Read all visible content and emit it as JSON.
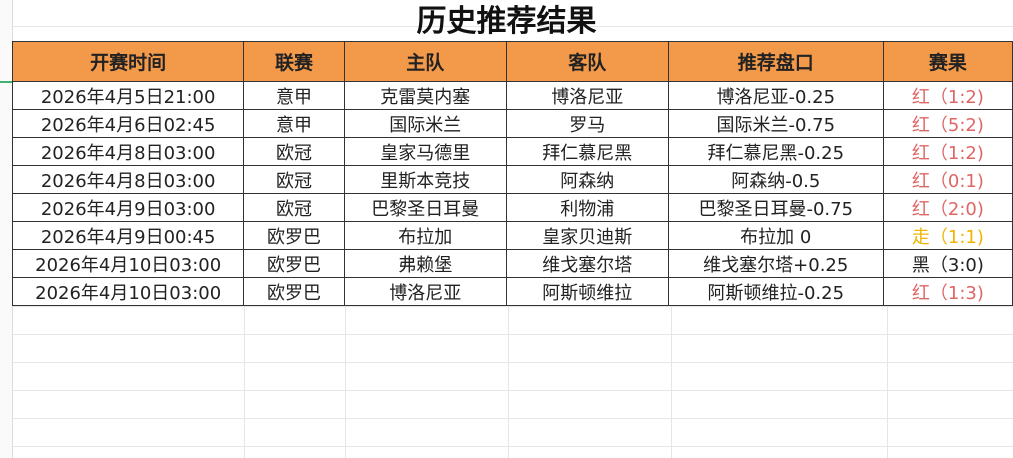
{
  "title": "历史推荐结果",
  "headers": [
    "开赛时间",
    "联赛",
    "主队",
    "客队",
    "推荐盘口",
    "赛果"
  ],
  "colors": {
    "header_bg": "#f39a4a",
    "win": "#e06666",
    "push": "#f0b400",
    "loss": "#222222"
  },
  "rows": [
    {
      "time": "2026年4月5日21:00",
      "league": "意甲",
      "home": "克雷莫内塞",
      "away": "博洛尼亚",
      "pick": "博洛尼亚-0.25",
      "result": "红（1:2)",
      "status": "red"
    },
    {
      "time": "2026年4月6日02:45",
      "league": "意甲",
      "home": "国际米兰",
      "away": "罗马",
      "pick": "国际米兰-0.75",
      "result": "红（5:2)",
      "status": "red"
    },
    {
      "time": "2026年4月8日03:00",
      "league": "欧冠",
      "home": "皇家马德里",
      "away": "拜仁慕尼黑",
      "pick": "拜仁慕尼黑-0.25",
      "result": "红（1:2)",
      "status": "red"
    },
    {
      "time": "2026年4月8日03:00",
      "league": "欧冠",
      "home": "里斯本竞技",
      "away": "阿森纳",
      "pick": "阿森纳-0.5",
      "result": "红（0:1)",
      "status": "red"
    },
    {
      "time": "2026年4月9日03:00",
      "league": "欧冠",
      "home": "巴黎圣日耳曼",
      "away": "利物浦",
      "pick": "巴黎圣日耳曼-0.75",
      "result": "红（2:0)",
      "status": "red"
    },
    {
      "time": "2026年4月9日00:45",
      "league": "欧罗巴",
      "home": "布拉加",
      "away": "皇家贝迪斯",
      "pick": "布拉加 0",
      "result": "走（1:1)",
      "status": "yellow"
    },
    {
      "time": "2026年4月10日03:00",
      "league": "欧罗巴",
      "home": "弗赖堡",
      "away": "维戈塞尔塔",
      "pick": "维戈塞尔塔+0.25",
      "result": "黑（3:0)",
      "status": "black"
    },
    {
      "time": "2026年4月10日03:00",
      "league": "欧罗巴",
      "home": "博洛尼亚",
      "away": "阿斯顿维拉",
      "pick": "阿斯顿维拉-0.25",
      "result": "红（1:3)",
      "status": "red"
    }
  ]
}
